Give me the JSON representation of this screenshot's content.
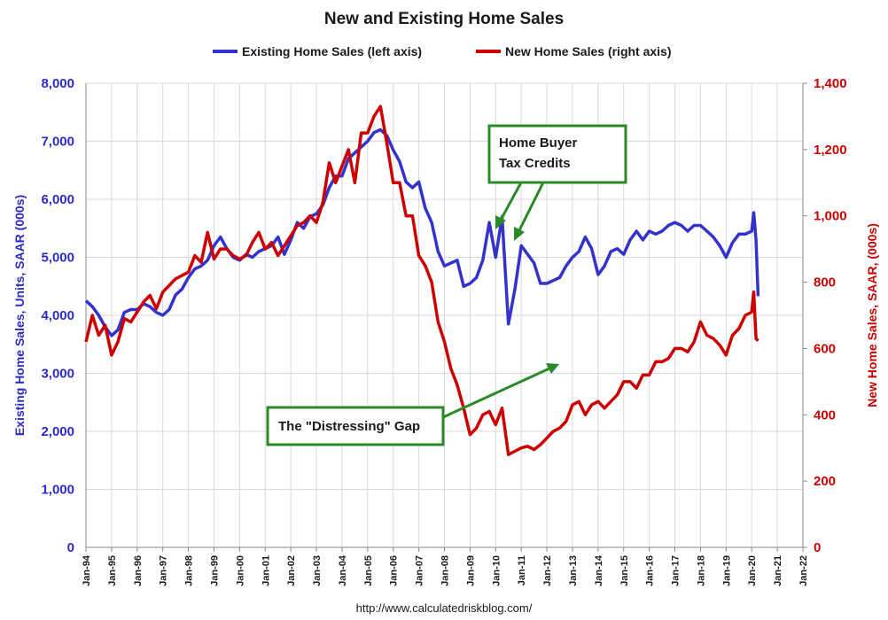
{
  "chart_data": {
    "type": "line",
    "title": "New and Existing Home Sales",
    "source": "http://www.calculatedriskblog.com/",
    "ylabel_left": "Existing Home Sales, Units, SAAR (000s)",
    "ylabel_right": "New Home Sales, SAAR, (000s)",
    "ylim_left": [
      0,
      8000
    ],
    "ylim_right": [
      0,
      1400
    ],
    "yticks_left": [
      "0",
      "1,000",
      "2,000",
      "3,000",
      "4,000",
      "5,000",
      "6,000",
      "7,000",
      "8,000"
    ],
    "yticks_right": [
      "0",
      "200",
      "400",
      "600",
      "800",
      "1,000",
      "1,200",
      "1,400"
    ],
    "x_start": 1994,
    "x_end": 2022,
    "x_tick_labels": [
      "Jan-94",
      "Jan-95",
      "Jan-96",
      "Jan-97",
      "Jan-98",
      "Jan-99",
      "Jan-00",
      "Jan-01",
      "Jan-02",
      "Jan-03",
      "Jan-04",
      "Jan-05",
      "Jan-06",
      "Jan-07",
      "Jan-08",
      "Jan-09",
      "Jan-10",
      "Jan-11",
      "Jan-12",
      "Jan-13",
      "Jan-14",
      "Jan-15",
      "Jan-16",
      "Jan-17",
      "Jan-18",
      "Jan-19",
      "Jan-20",
      "Jan-21",
      "Jan-22"
    ],
    "grid": true,
    "legend_position": "top",
    "series": [
      {
        "name": "Existing Home Sales (left axis)",
        "axis": "left",
        "color": "#3333cc",
        "points": [
          [
            1994.0,
            4250
          ],
          [
            1994.25,
            4150
          ],
          [
            1994.5,
            4000
          ],
          [
            1994.75,
            3800
          ],
          [
            1995.0,
            3650
          ],
          [
            1995.25,
            3750
          ],
          [
            1995.5,
            4050
          ],
          [
            1995.75,
            4100
          ],
          [
            1996.0,
            4100
          ],
          [
            1996.25,
            4200
          ],
          [
            1996.5,
            4150
          ],
          [
            1996.75,
            4050
          ],
          [
            1997.0,
            4000
          ],
          [
            1997.25,
            4100
          ],
          [
            1997.5,
            4350
          ],
          [
            1997.75,
            4450
          ],
          [
            1998.0,
            4650
          ],
          [
            1998.25,
            4800
          ],
          [
            1998.5,
            4850
          ],
          [
            1998.75,
            4950
          ],
          [
            1999.0,
            5200
          ],
          [
            1999.25,
            5350
          ],
          [
            1999.5,
            5150
          ],
          [
            1999.75,
            5000
          ],
          [
            2000.0,
            4950
          ],
          [
            2000.25,
            5050
          ],
          [
            2000.5,
            5000
          ],
          [
            2000.75,
            5100
          ],
          [
            2001.0,
            5150
          ],
          [
            2001.25,
            5200
          ],
          [
            2001.5,
            5350
          ],
          [
            2001.75,
            5050
          ],
          [
            2002.0,
            5300
          ],
          [
            2002.25,
            5600
          ],
          [
            2002.5,
            5500
          ],
          [
            2002.75,
            5700
          ],
          [
            2003.0,
            5750
          ],
          [
            2003.25,
            5900
          ],
          [
            2003.5,
            6200
          ],
          [
            2003.75,
            6400
          ],
          [
            2004.0,
            6400
          ],
          [
            2004.25,
            6700
          ],
          [
            2004.5,
            6800
          ],
          [
            2004.75,
            6900
          ],
          [
            2005.0,
            7000
          ],
          [
            2005.25,
            7150
          ],
          [
            2005.5,
            7200
          ],
          [
            2005.75,
            7100
          ],
          [
            2006.0,
            6850
          ],
          [
            2006.25,
            6650
          ],
          [
            2006.5,
            6300
          ],
          [
            2006.75,
            6200
          ],
          [
            2007.0,
            6300
          ],
          [
            2007.25,
            5850
          ],
          [
            2007.5,
            5600
          ],
          [
            2007.75,
            5100
          ],
          [
            2008.0,
            4850
          ],
          [
            2008.25,
            4900
          ],
          [
            2008.5,
            4950
          ],
          [
            2008.75,
            4500
          ],
          [
            2009.0,
            4550
          ],
          [
            2009.25,
            4650
          ],
          [
            2009.5,
            4950
          ],
          [
            2009.75,
            5600
          ],
          [
            2010.0,
            5000
          ],
          [
            2010.25,
            5700
          ],
          [
            2010.5,
            3850
          ],
          [
            2010.75,
            4450
          ],
          [
            2011.0,
            5200
          ],
          [
            2011.25,
            5050
          ],
          [
            2011.5,
            4900
          ],
          [
            2011.75,
            4550
          ],
          [
            2012.0,
            4550
          ],
          [
            2012.25,
            4600
          ],
          [
            2012.5,
            4650
          ],
          [
            2012.75,
            4850
          ],
          [
            2013.0,
            5000
          ],
          [
            2013.25,
            5100
          ],
          [
            2013.5,
            5350
          ],
          [
            2013.75,
            5150
          ],
          [
            2014.0,
            4700
          ],
          [
            2014.25,
            4850
          ],
          [
            2014.5,
            5100
          ],
          [
            2014.75,
            5150
          ],
          [
            2015.0,
            5050
          ],
          [
            2015.25,
            5300
          ],
          [
            2015.5,
            5450
          ],
          [
            2015.75,
            5300
          ],
          [
            2016.0,
            5450
          ],
          [
            2016.25,
            5400
          ],
          [
            2016.5,
            5450
          ],
          [
            2016.75,
            5550
          ],
          [
            2017.0,
            5600
          ],
          [
            2017.25,
            5550
          ],
          [
            2017.5,
            5450
          ],
          [
            2017.75,
            5550
          ],
          [
            2018.0,
            5550
          ],
          [
            2018.25,
            5450
          ],
          [
            2018.5,
            5350
          ],
          [
            2018.75,
            5200
          ],
          [
            2019.0,
            5000
          ],
          [
            2019.25,
            5250
          ],
          [
            2019.5,
            5400
          ],
          [
            2019.75,
            5400
          ],
          [
            2020.0,
            5450
          ],
          [
            2020.08,
            5770
          ],
          [
            2020.17,
            5300
          ],
          [
            2020.25,
            4330
          ]
        ]
      },
      {
        "name": "New Home Sales (right axis)",
        "axis": "right",
        "color": "#cc0000",
        "points": [
          [
            1994.0,
            620
          ],
          [
            1994.25,
            700
          ],
          [
            1994.5,
            640
          ],
          [
            1994.75,
            670
          ],
          [
            1995.0,
            580
          ],
          [
            1995.25,
            620
          ],
          [
            1995.5,
            690
          ],
          [
            1995.75,
            680
          ],
          [
            1996.0,
            710
          ],
          [
            1996.25,
            740
          ],
          [
            1996.5,
            760
          ],
          [
            1996.75,
            720
          ],
          [
            1997.0,
            770
          ],
          [
            1997.25,
            790
          ],
          [
            1997.5,
            810
          ],
          [
            1997.75,
            820
          ],
          [
            1998.0,
            830
          ],
          [
            1998.25,
            880
          ],
          [
            1998.5,
            860
          ],
          [
            1998.75,
            950
          ],
          [
            1999.0,
            870
          ],
          [
            1999.25,
            900
          ],
          [
            1999.5,
            900
          ],
          [
            1999.75,
            880
          ],
          [
            2000.0,
            870
          ],
          [
            2000.25,
            880
          ],
          [
            2000.5,
            920
          ],
          [
            2000.75,
            950
          ],
          [
            2001.0,
            900
          ],
          [
            2001.25,
            920
          ],
          [
            2001.5,
            880
          ],
          [
            2001.75,
            910
          ],
          [
            2002.0,
            940
          ],
          [
            2002.25,
            970
          ],
          [
            2002.5,
            980
          ],
          [
            2002.75,
            1000
          ],
          [
            2003.0,
            980
          ],
          [
            2003.25,
            1040
          ],
          [
            2003.5,
            1160
          ],
          [
            2003.75,
            1100
          ],
          [
            2004.0,
            1150
          ],
          [
            2004.25,
            1200
          ],
          [
            2004.5,
            1100
          ],
          [
            2004.75,
            1250
          ],
          [
            2005.0,
            1250
          ],
          [
            2005.25,
            1300
          ],
          [
            2005.5,
            1330
          ],
          [
            2005.75,
            1220
          ],
          [
            2006.0,
            1100
          ],
          [
            2006.25,
            1100
          ],
          [
            2006.5,
            1000
          ],
          [
            2006.75,
            1000
          ],
          [
            2007.0,
            880
          ],
          [
            2007.25,
            850
          ],
          [
            2007.5,
            800
          ],
          [
            2007.75,
            680
          ],
          [
            2008.0,
            620
          ],
          [
            2008.25,
            540
          ],
          [
            2008.5,
            490
          ],
          [
            2008.75,
            420
          ],
          [
            2009.0,
            340
          ],
          [
            2009.25,
            360
          ],
          [
            2009.5,
            400
          ],
          [
            2009.75,
            410
          ],
          [
            2010.0,
            370
          ],
          [
            2010.25,
            420
          ],
          [
            2010.5,
            280
          ],
          [
            2010.75,
            290
          ],
          [
            2011.0,
            300
          ],
          [
            2011.25,
            305
          ],
          [
            2011.5,
            295
          ],
          [
            2011.75,
            310
          ],
          [
            2012.0,
            330
          ],
          [
            2012.25,
            350
          ],
          [
            2012.5,
            360
          ],
          [
            2012.75,
            380
          ],
          [
            2013.0,
            430
          ],
          [
            2013.25,
            440
          ],
          [
            2013.5,
            400
          ],
          [
            2013.75,
            430
          ],
          [
            2014.0,
            440
          ],
          [
            2014.25,
            420
          ],
          [
            2014.5,
            440
          ],
          [
            2014.75,
            460
          ],
          [
            2015.0,
            500
          ],
          [
            2015.25,
            500
          ],
          [
            2015.5,
            480
          ],
          [
            2015.75,
            520
          ],
          [
            2016.0,
            520
          ],
          [
            2016.25,
            560
          ],
          [
            2016.5,
            560
          ],
          [
            2016.75,
            570
          ],
          [
            2017.0,
            600
          ],
          [
            2017.25,
            600
          ],
          [
            2017.5,
            590
          ],
          [
            2017.75,
            620
          ],
          [
            2018.0,
            680
          ],
          [
            2018.25,
            640
          ],
          [
            2018.5,
            630
          ],
          [
            2018.75,
            610
          ],
          [
            2019.0,
            580
          ],
          [
            2019.25,
            640
          ],
          [
            2019.5,
            660
          ],
          [
            2019.75,
            700
          ],
          [
            2020.0,
            710
          ],
          [
            2020.08,
            770
          ],
          [
            2020.17,
            630
          ],
          [
            2020.25,
            623
          ]
        ]
      }
    ],
    "annotations": [
      {
        "lines": [
          "Home Buyer",
          "Tax Credits"
        ]
      },
      {
        "lines": [
          "The \"Distressing\" Gap"
        ]
      }
    ]
  },
  "colors": {
    "existing": "#3333cc",
    "new": "#cc0000",
    "annotation": "#2a8a2a",
    "grid": "#d9d9d9"
  }
}
